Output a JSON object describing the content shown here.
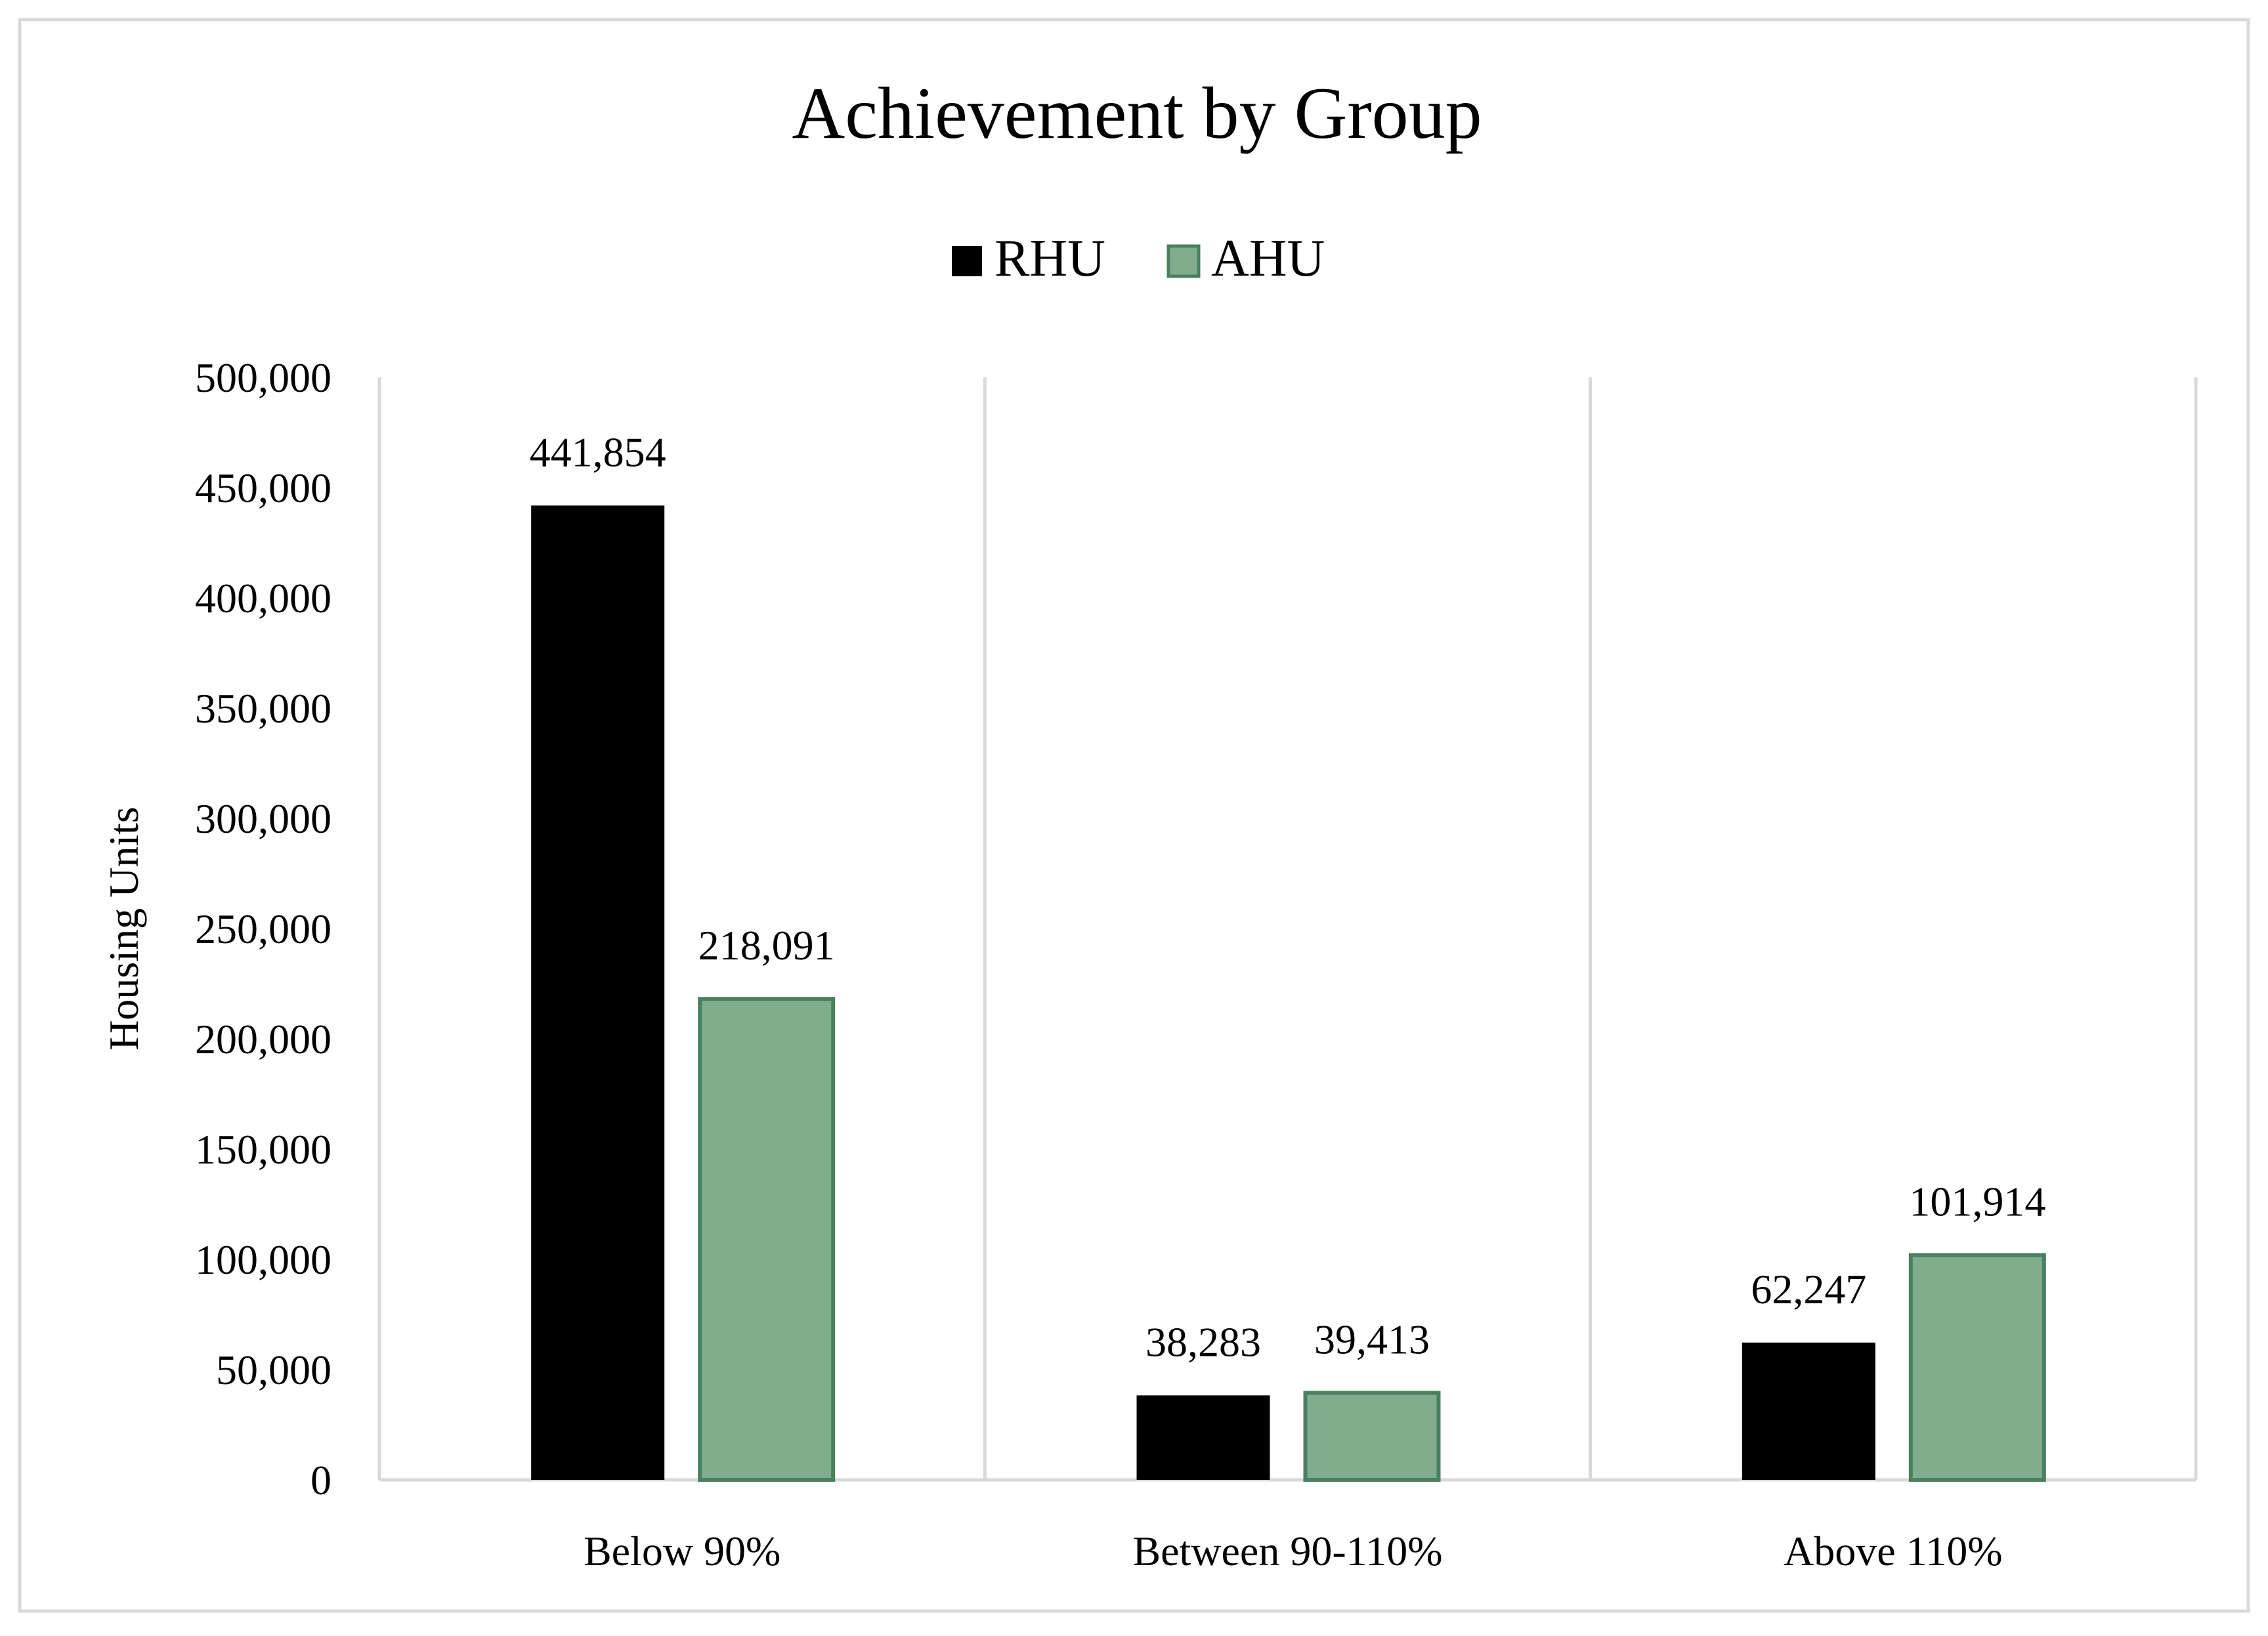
{
  "chart_data": {
    "type": "bar",
    "title": "Achievement by Group",
    "xlabel": "",
    "ylabel": "Housing Units",
    "categories": [
      "Below 90%",
      "Between 90-110%",
      "Above 110%"
    ],
    "series": [
      {
        "name": "RHU",
        "color": "#000000",
        "values": [
          441854,
          38283,
          62247
        ],
        "labels": [
          "441,854",
          "38,283",
          "62,247"
        ]
      },
      {
        "name": "AHU",
        "color": "#80ad8e",
        "border_color": "#4a8060",
        "values": [
          218091,
          39413,
          101914
        ],
        "labels": [
          "218,091",
          "39,413",
          "101,914"
        ]
      }
    ],
    "ylim": [
      0,
      500000
    ],
    "yticks": [
      0,
      50000,
      100000,
      150000,
      200000,
      250000,
      300000,
      350000,
      400000,
      450000,
      500000
    ],
    "ytick_labels": [
      "0",
      "50,000",
      "100,000",
      "150,000",
      "200,000",
      "250,000",
      "300,000",
      "350,000",
      "400,000",
      "450,000",
      "500,000"
    ],
    "legend_position": "top-center",
    "grid": "vertical category separators",
    "colors": {
      "frame": "#d9d9d9",
      "axis": "#d9d9d9"
    }
  }
}
